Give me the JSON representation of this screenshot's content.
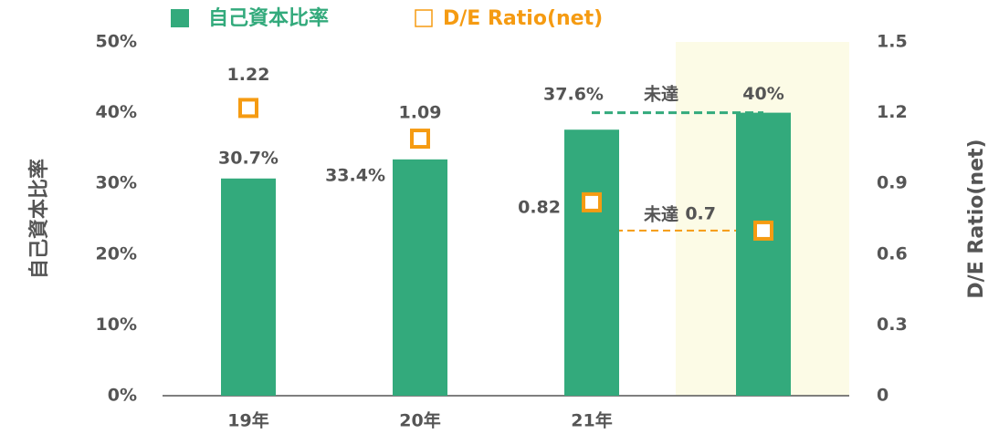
{
  "chart_data": {
    "type": "bar_line",
    "categories": [
      "19年",
      "20年",
      "21年",
      null
    ],
    "series": [
      {
        "name": "自己資本比率",
        "type": "bar",
        "color": "#33aa7c",
        "values": [
          30.7,
          33.4,
          37.6,
          40
        ],
        "value_labels": [
          "30.7%",
          "33.4%",
          "37.6%",
          "40%"
        ]
      },
      {
        "name": "D/E Ratio(net)",
        "type": "square",
        "axis": "y2",
        "color": "#f59b12",
        "values": [
          1.22,
          1.09,
          0.82,
          0.7
        ]
      }
    ],
    "ylabel": "自己資本比率",
    "y2label": "D/E Ratio(net)",
    "ylim": [
      0,
      50
    ],
    "yticks": [
      {
        "value": 0,
        "label": "0%"
      },
      {
        "value": 10,
        "label": "10%"
      },
      {
        "value": 20,
        "label": "20%"
      },
      {
        "value": 30,
        "label": "30%"
      },
      {
        "value": 40,
        "label": "40%"
      },
      {
        "value": 50,
        "label": "50%"
      }
    ],
    "y2lim": [
      0,
      1.5
    ],
    "y2ticks": [
      0,
      0.3,
      0.6,
      0.9,
      1.2,
      1.5
    ],
    "annotations": [
      "未達",
      "未達"
    ],
    "legend": "top"
  }
}
